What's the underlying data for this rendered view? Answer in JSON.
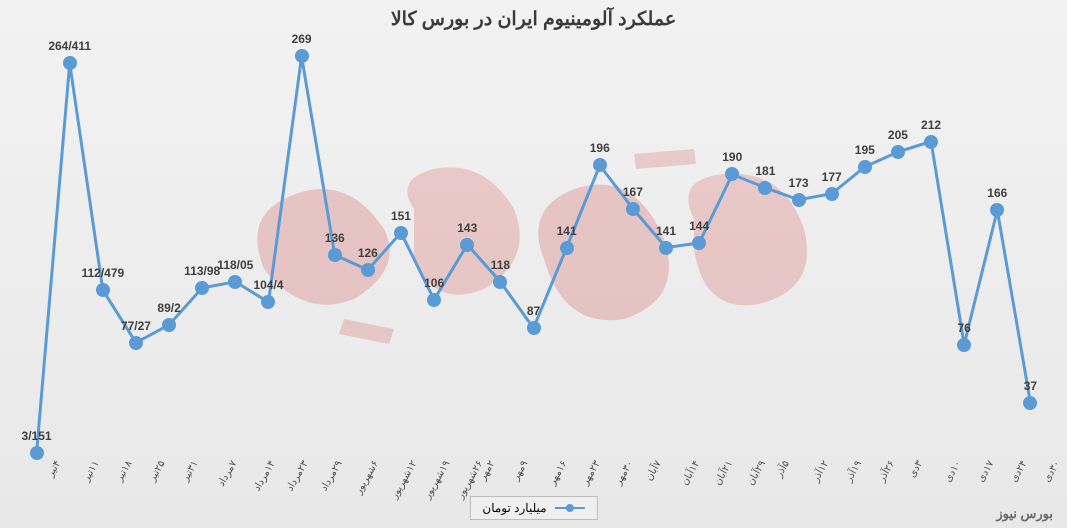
{
  "chart": {
    "type": "line",
    "title": "عملکرد آلومینیوم ایران در بورس کالا",
    "legend_label": "میلیارد تومان",
    "footer": "بورس نیوز",
    "line_color": "#5b9bd5",
    "marker_color": "#5b9bd5",
    "marker_size": 14,
    "line_width": 3,
    "label_color": "#404040",
    "label_fontsize": 12,
    "title_color": "#3a3a3a",
    "title_fontsize": 19,
    "background_top": "#f2f2f2",
    "background_bottom": "#e8e8e8",
    "watermark_color": "#d96b6b",
    "ylim": [
      0,
      280
    ],
    "categories": [
      "۴تیر",
      "۱۱تیر",
      "۱۸تیر",
      "۲۵تیر",
      "۳۱تیر",
      "۷مرداد",
      "۱۴مرداد",
      "۲۳مرداد",
      "۲۹مرداد",
      "۶شهریور",
      "۱۲شهریور",
      "۱۹شهریور",
      "۲۶شهریور",
      "۲مهر",
      "۹مهر",
      "۱۶مهر",
      "۲۳مهر",
      "۳۰مهر",
      "۷آبان",
      "۱۴آبان",
      "۲۱آبان",
      "۲۹آبان",
      "۵آذر",
      "۱۲آذر",
      "۱۹آذر",
      "۲۶آذر",
      "۳دی",
      "۱۰دی",
      "۱۷دی",
      "۲۴دی",
      "۳۰دی"
    ],
    "values": [
      3.151,
      264.411,
      112.479,
      77.27,
      89.2,
      113.98,
      118.05,
      104.4,
      269,
      136,
      126,
      151,
      106,
      143,
      118,
      87,
      141,
      196,
      167,
      141,
      144,
      190,
      181,
      173,
      177,
      195,
      205,
      212,
      76,
      166,
      37
    ],
    "labels": [
      "3/151",
      "264/411",
      "112/479",
      "77/27",
      "89/2",
      "113/98",
      "118/05",
      "104/4",
      "269",
      "136",
      "126",
      "151",
      "106",
      "143",
      "118",
      "87",
      "141",
      "196",
      "167",
      "141",
      "144",
      "190",
      "181",
      "173",
      "177",
      "195",
      "205",
      "212",
      "76",
      "166",
      "37"
    ]
  }
}
